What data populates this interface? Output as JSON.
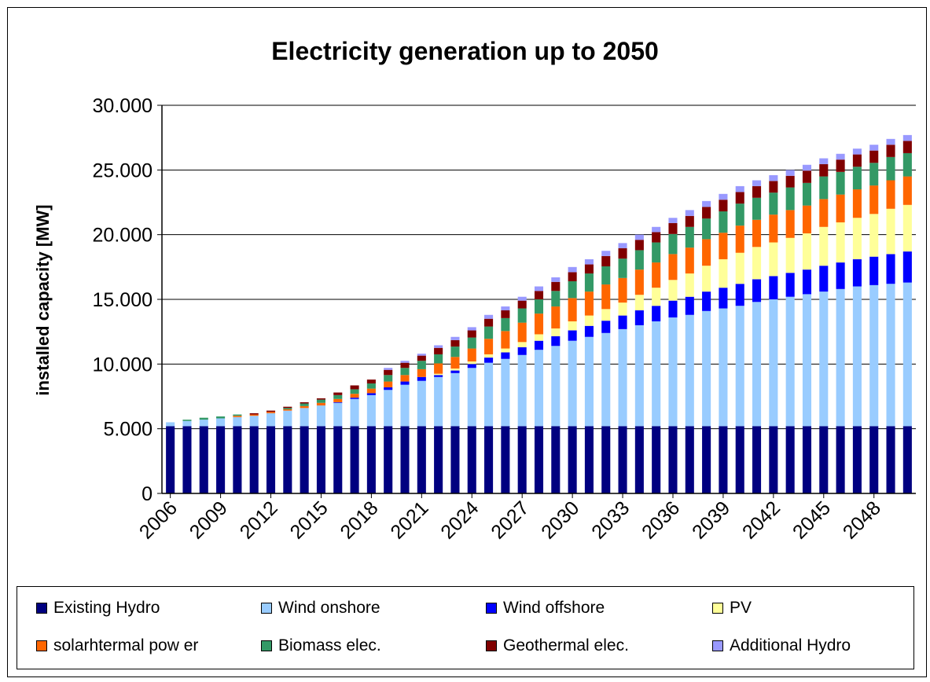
{
  "chart_data": {
    "type": "bar",
    "stacked": true,
    "title": "Electricity generation up to 2050",
    "ylabel": "installed capacity [MW]",
    "xlabel": "",
    "ylim": [
      0,
      30000
    ],
    "yticks": [
      "0",
      "5.000",
      "10.000",
      "15.000",
      "20.000",
      "25.000",
      "30.000"
    ],
    "ytick_values": [
      0,
      5000,
      10000,
      15000,
      20000,
      25000,
      30000
    ],
    "grid": "horizontal",
    "legend_position": "bottom",
    "x_tick_labels": [
      "2006",
      "2009",
      "2012",
      "2015",
      "2018",
      "2021",
      "2024",
      "2027",
      "2030",
      "2033",
      "2036",
      "2039",
      "2042",
      "2045",
      "2048"
    ],
    "categories": [
      2006,
      2007,
      2008,
      2009,
      2010,
      2011,
      2012,
      2013,
      2014,
      2015,
      2016,
      2017,
      2018,
      2019,
      2020,
      2021,
      2022,
      2023,
      2024,
      2025,
      2026,
      2027,
      2028,
      2029,
      2030,
      2031,
      2032,
      2033,
      2034,
      2035,
      2036,
      2037,
      2038,
      2039,
      2040,
      2041,
      2042,
      2043,
      2044,
      2045,
      2046,
      2047,
      2048,
      2049,
      2050
    ],
    "series": [
      {
        "name": "Existing Hydro",
        "color": "#000080",
        "values": [
          5200,
          5200,
          5200,
          5200,
          5200,
          5200,
          5200,
          5200,
          5200,
          5200,
          5200,
          5200,
          5200,
          5200,
          5200,
          5200,
          5200,
          5200,
          5200,
          5200,
          5200,
          5200,
          5200,
          5200,
          5200,
          5200,
          5200,
          5200,
          5200,
          5200,
          5200,
          5200,
          5200,
          5200,
          5200,
          5200,
          5200,
          5200,
          5200,
          5200,
          5200,
          5200,
          5200,
          5200,
          5200
        ]
      },
      {
        "name": "Wind onshore",
        "color": "#99CCFF",
        "values": [
          300,
          400,
          500,
          600,
          700,
          800,
          1000,
          1200,
          1400,
          1600,
          1800,
          2100,
          2400,
          2800,
          3200,
          3500,
          3800,
          4100,
          4500,
          4900,
          5200,
          5500,
          5900,
          6200,
          6600,
          6900,
          7200,
          7500,
          7800,
          8100,
          8400,
          8600,
          8900,
          9100,
          9300,
          9600,
          9800,
          10000,
          10200,
          10400,
          10600,
          10800,
          10900,
          11000,
          11100
        ]
      },
      {
        "name": "Wind offshore",
        "color": "#0000FF",
        "values": [
          0,
          0,
          0,
          0,
          0,
          0,
          0,
          0,
          0,
          0,
          50,
          100,
          150,
          200,
          250,
          300,
          150,
          200,
          300,
          400,
          500,
          600,
          700,
          750,
          800,
          850,
          950,
          1050,
          1150,
          1200,
          1300,
          1400,
          1500,
          1600,
          1700,
          1750,
          1800,
          1850,
          1900,
          2000,
          2050,
          2100,
          2200,
          2300,
          2400
        ]
      },
      {
        "name": "PV",
        "color": "#FFFF99",
        "values": [
          0,
          0,
          0,
          0,
          0,
          0,
          0,
          0,
          0,
          0,
          0,
          0,
          0,
          0,
          0,
          0,
          100,
          150,
          200,
          250,
          300,
          400,
          500,
          600,
          700,
          800,
          900,
          1000,
          1200,
          1400,
          1600,
          1800,
          2000,
          2200,
          2400,
          2500,
          2600,
          2700,
          2800,
          3000,
          3100,
          3200,
          3300,
          3500,
          3600
        ]
      },
      {
        "name": "solarhtermal pow er",
        "color": "#FF6600",
        "values": [
          0,
          0,
          0,
          0,
          100,
          100,
          100,
          100,
          150,
          200,
          250,
          300,
          350,
          450,
          500,
          600,
          800,
          900,
          1000,
          1200,
          1350,
          1500,
          1600,
          1700,
          1800,
          1850,
          1900,
          1900,
          1950,
          1950,
          2000,
          2000,
          2050,
          2050,
          2100,
          2100,
          2150,
          2150,
          2150,
          2150,
          2150,
          2200,
          2200,
          2200,
          2200
        ]
      },
      {
        "name": "Biomass elec.",
        "color": "#339966",
        "values": [
          0,
          100,
          150,
          150,
          100,
          0,
          0,
          100,
          200,
          250,
          300,
          350,
          400,
          500,
          550,
          650,
          700,
          800,
          850,
          950,
          1000,
          1100,
          1100,
          1200,
          1300,
          1400,
          1400,
          1500,
          1500,
          1550,
          1550,
          1600,
          1600,
          1650,
          1700,
          1700,
          1700,
          1750,
          1750,
          1750,
          1750,
          1750,
          1750,
          1800,
          1800
        ]
      },
      {
        "name": "Geothermal elec.",
        "color": "#800000",
        "values": [
          0,
          0,
          0,
          0,
          0,
          100,
          100,
          100,
          100,
          100,
          200,
          300,
          300,
          400,
          400,
          400,
          500,
          500,
          550,
          600,
          600,
          600,
          650,
          700,
          700,
          700,
          800,
          800,
          800,
          800,
          850,
          850,
          900,
          900,
          900,
          900,
          900,
          900,
          950,
          950,
          950,
          950,
          950,
          950,
          950
        ]
      },
      {
        "name": "Additional Hydro",
        "color": "#9999FF",
        "values": [
          0,
          0,
          0,
          0,
          0,
          0,
          0,
          0,
          0,
          0,
          0,
          0,
          0,
          150,
          150,
          150,
          200,
          250,
          250,
          300,
          300,
          300,
          350,
          350,
          400,
          400,
          400,
          400,
          400,
          400,
          400,
          450,
          450,
          450,
          450,
          450,
          450,
          450,
          450,
          450,
          450,
          450,
          450,
          450,
          450
        ]
      }
    ]
  }
}
